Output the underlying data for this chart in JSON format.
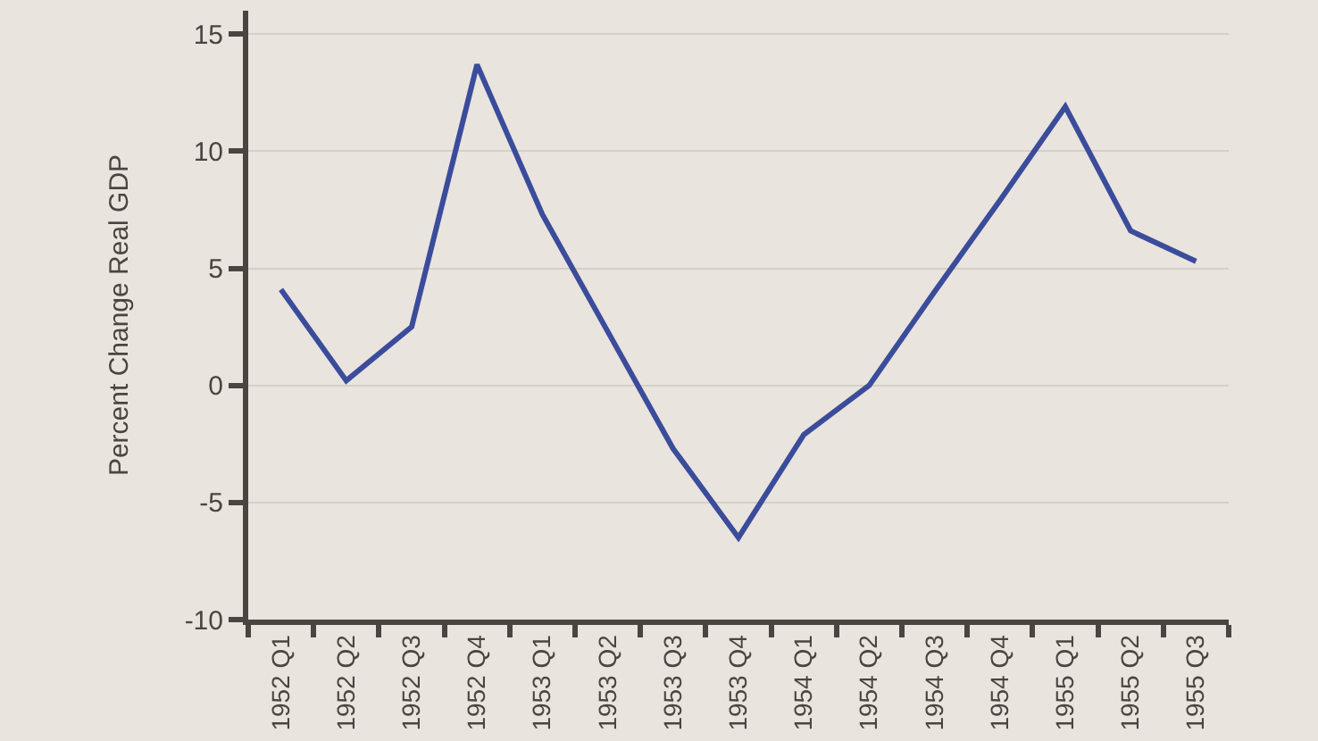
{
  "chart_data": {
    "type": "line",
    "ylabel": "Percent Change Real GDP",
    "categories": [
      "1952 Q1",
      "1952 Q2",
      "1952 Q3",
      "1952 Q4",
      "1953 Q1",
      "1953 Q2",
      "1953 Q3",
      "1953 Q4",
      "1954 Q1",
      "1954 Q2",
      "1954 Q3",
      "1954 Q4",
      "1955 Q1",
      "1955 Q2",
      "1955 Q3"
    ],
    "series": [
      {
        "color": "#3b4c9b",
        "values": [
          4.1,
          0.2,
          2.5,
          13.7,
          7.3,
          2.3,
          -2.7,
          -6.5,
          -2.1,
          0.0,
          4.0,
          7.9,
          11.9,
          6.6,
          5.3
        ]
      }
    ],
    "ylim": [
      -10,
      16
    ],
    "yticks": [
      -10,
      -5,
      0,
      5,
      10,
      15
    ],
    "grid": "y"
  }
}
